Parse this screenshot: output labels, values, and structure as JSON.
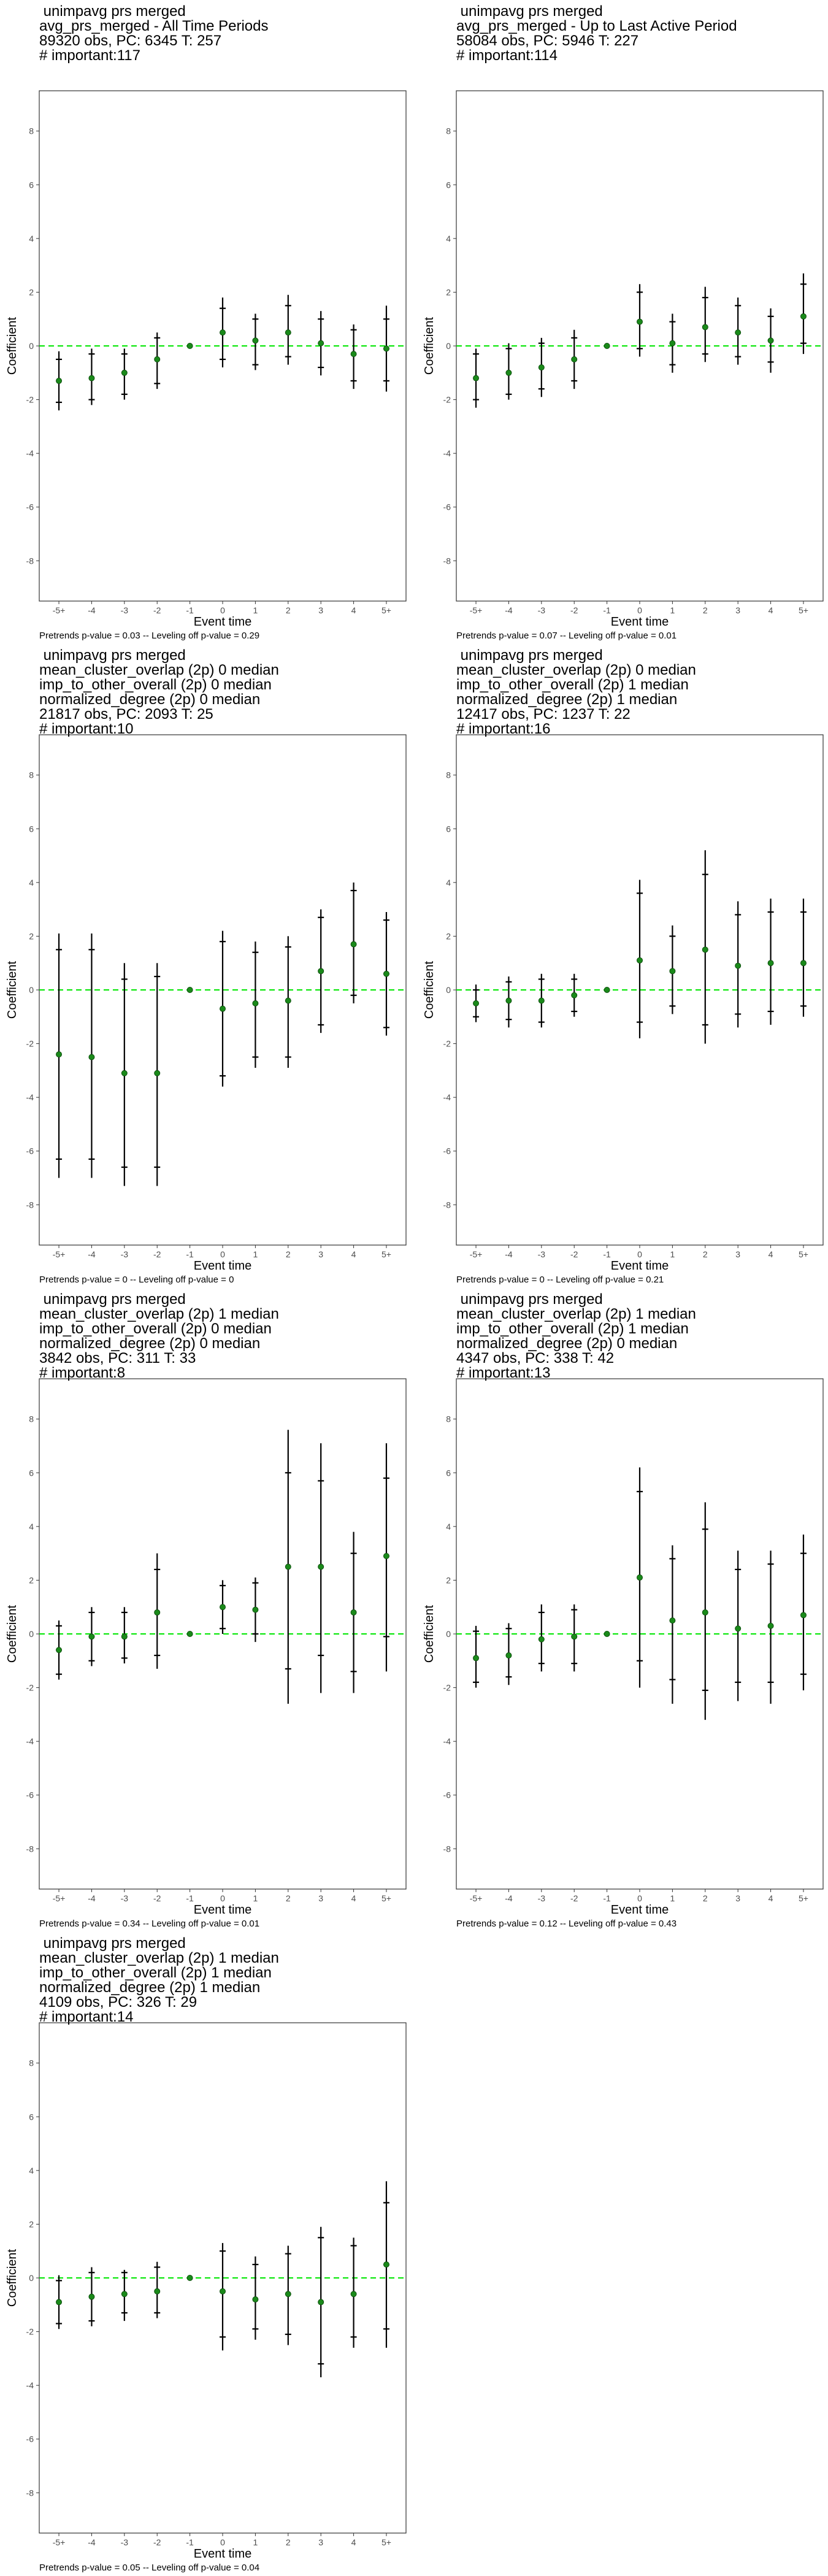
{
  "axis_labels": {
    "x": "Event time",
    "y": "Coefficient"
  },
  "colors": {
    "point": "#1a8a1a",
    "zero_line": "#00e600",
    "error_bar": "#000000",
    "frame": "#333333"
  },
  "chart_data": [
    {
      "type": "scatter",
      "title_lines": [
        " unimpavg prs merged",
        "avg_prs_merged - All Time Periods",
        "89320 obs, PC: 6345 T: 257",
        "# important:117"
      ],
      "footer": "Pretrends p-value = 0.03 -- Leveling off p-value = 0.29",
      "xlabel": "Event time",
      "ylabel": "Coefficient",
      "categories": [
        "-5+",
        "-4",
        "-3",
        "-2",
        "-1",
        "0",
        "1",
        "2",
        "3",
        "4",
        "5+"
      ],
      "ylim": [
        -9.5,
        9.5
      ],
      "yticks": [
        -8,
        -6,
        -4,
        -2,
        0,
        2,
        4,
        6,
        8
      ],
      "series": [
        {
          "estimate": [
            -1.3,
            -1.2,
            -1.0,
            -0.5,
            0,
            0.5,
            0.2,
            0.5,
            0.1,
            -0.3,
            -0.1
          ],
          "ci95": [
            [
              -2.4,
              -0.2
            ],
            [
              -2.2,
              -0.1
            ],
            [
              -2.0,
              -0.1
            ],
            [
              -1.6,
              0.5
            ],
            [
              0,
              0
            ],
            [
              -0.8,
              1.8
            ],
            [
              -0.9,
              1.2
            ],
            [
              -0.7,
              1.9
            ],
            [
              -1.1,
              1.3
            ],
            [
              -1.6,
              0.8
            ],
            [
              -1.7,
              1.5
            ]
          ],
          "ci90": [
            [
              -2.1,
              -0.5
            ],
            [
              -2.0,
              -0.3
            ],
            [
              -1.8,
              -0.3
            ],
            [
              -1.4,
              0.3
            ],
            [
              0,
              0
            ],
            [
              -0.5,
              1.4
            ],
            [
              -0.7,
              1.0
            ],
            [
              -0.4,
              1.5
            ],
            [
              -0.8,
              1.0
            ],
            [
              -1.3,
              0.6
            ],
            [
              -1.3,
              1.0
            ]
          ]
        }
      ]
    },
    {
      "type": "scatter",
      "title_lines": [
        " unimpavg prs merged",
        "avg_prs_merged - Up to Last Active Period",
        "58084 obs, PC: 5946 T: 227",
        "# important:114"
      ],
      "footer": "Pretrends p-value = 0.07 -- Leveling off p-value = 0.01",
      "xlabel": "Event time",
      "ylabel": "Coefficient",
      "categories": [
        "-5+",
        "-4",
        "-3",
        "-2",
        "-1",
        "0",
        "1",
        "2",
        "3",
        "4",
        "5+"
      ],
      "ylim": [
        -9.5,
        9.5
      ],
      "yticks": [
        -8,
        -6,
        -4,
        -2,
        0,
        2,
        4,
        6,
        8
      ],
      "series": [
        {
          "estimate": [
            -1.2,
            -1.0,
            -0.8,
            -0.5,
            0,
            0.9,
            0.1,
            0.7,
            0.5,
            0.2,
            1.1
          ],
          "ci95": [
            [
              -2.3,
              -0.1
            ],
            [
              -2.0,
              0.1
            ],
            [
              -1.9,
              0.3
            ],
            [
              -1.6,
              0.6
            ],
            [
              0,
              0
            ],
            [
              -0.4,
              2.3
            ],
            [
              -1.0,
              1.2
            ],
            [
              -0.6,
              2.2
            ],
            [
              -0.7,
              1.8
            ],
            [
              -1.0,
              1.4
            ],
            [
              -0.3,
              2.7
            ]
          ],
          "ci90": [
            [
              -2.0,
              -0.3
            ],
            [
              -1.8,
              -0.1
            ],
            [
              -1.6,
              0.1
            ],
            [
              -1.3,
              0.3
            ],
            [
              0,
              0
            ],
            [
              -0.1,
              2.0
            ],
            [
              -0.7,
              0.9
            ],
            [
              -0.3,
              1.8
            ],
            [
              -0.4,
              1.5
            ],
            [
              -0.6,
              1.1
            ],
            [
              0.1,
              2.3
            ]
          ]
        }
      ]
    },
    {
      "type": "scatter",
      "title_lines": [
        " unimpavg prs merged",
        "mean_cluster_overlap (2p) 0 median",
        "imp_to_other_overall (2p) 0 median",
        "normalized_degree (2p) 0 median",
        "21817 obs, PC: 2093 T: 25",
        "# important:10"
      ],
      "footer": "Pretrends p-value = 0 -- Leveling off p-value = 0",
      "xlabel": "Event time",
      "ylabel": "Coefficient",
      "categories": [
        "-5+",
        "-4",
        "-3",
        "-2",
        "-1",
        "0",
        "1",
        "2",
        "3",
        "4",
        "5+"
      ],
      "ylim": [
        -9.5,
        9.5
      ],
      "yticks": [
        -8,
        -6,
        -4,
        -2,
        0,
        2,
        4,
        6,
        8
      ],
      "series": [
        {
          "estimate": [
            -2.4,
            -2.5,
            -3.1,
            -3.1,
            0,
            -0.7,
            -0.5,
            -0.4,
            0.7,
            1.7,
            0.6
          ],
          "ci95": [
            [
              -7.0,
              2.1
            ],
            [
              -7.0,
              2.1
            ],
            [
              -7.3,
              1.0
            ],
            [
              -7.3,
              1.0
            ],
            [
              0,
              0
            ],
            [
              -3.6,
              2.2
            ],
            [
              -2.9,
              1.8
            ],
            [
              -2.9,
              2.0
            ],
            [
              -1.6,
              3.0
            ],
            [
              -0.5,
              4.0
            ],
            [
              -1.7,
              2.9
            ]
          ],
          "ci90": [
            [
              -6.3,
              1.5
            ],
            [
              -6.3,
              1.5
            ],
            [
              -6.6,
              0.4
            ],
            [
              -6.6,
              0.5
            ],
            [
              0,
              0
            ],
            [
              -3.2,
              1.8
            ],
            [
              -2.5,
              1.4
            ],
            [
              -2.5,
              1.6
            ],
            [
              -1.3,
              2.7
            ],
            [
              -0.2,
              3.7
            ],
            [
              -1.4,
              2.6
            ]
          ]
        }
      ]
    },
    {
      "type": "scatter",
      "title_lines": [
        " unimpavg prs merged",
        "mean_cluster_overlap (2p) 0 median",
        "imp_to_other_overall (2p) 1 median",
        "normalized_degree (2p) 1 median",
        "12417 obs, PC: 1237 T: 22",
        "# important:16"
      ],
      "footer": "Pretrends p-value = 0 -- Leveling off p-value = 0.21",
      "xlabel": "Event time",
      "ylabel": "Coefficient",
      "categories": [
        "-5+",
        "-4",
        "-3",
        "-2",
        "-1",
        "0",
        "1",
        "2",
        "3",
        "4",
        "5+"
      ],
      "ylim": [
        -9.5,
        9.5
      ],
      "yticks": [
        -8,
        -6,
        -4,
        -2,
        0,
        2,
        4,
        6,
        8
      ],
      "series": [
        {
          "estimate": [
            -0.5,
            -0.4,
            -0.4,
            -0.2,
            0,
            1.1,
            0.7,
            1.5,
            0.9,
            1.0,
            1.0
          ],
          "ci95": [
            [
              -1.2,
              0.2
            ],
            [
              -1.4,
              0.5
            ],
            [
              -1.4,
              0.6
            ],
            [
              -1.0,
              0.6
            ],
            [
              0,
              0
            ],
            [
              -1.8,
              4.1
            ],
            [
              -0.9,
              2.4
            ],
            [
              -2.0,
              5.2
            ],
            [
              -1.4,
              3.3
            ],
            [
              -1.3,
              3.4
            ],
            [
              -1.0,
              3.4
            ]
          ],
          "ci90": [
            [
              -1.0,
              0.0
            ],
            [
              -1.1,
              0.3
            ],
            [
              -1.2,
              0.4
            ],
            [
              -0.8,
              0.4
            ],
            [
              0,
              0
            ],
            [
              -1.2,
              3.6
            ],
            [
              -0.6,
              2.0
            ],
            [
              -1.3,
              4.3
            ],
            [
              -0.9,
              2.8
            ],
            [
              -0.8,
              2.9
            ],
            [
              -0.6,
              2.9
            ]
          ]
        }
      ]
    },
    {
      "type": "scatter",
      "title_lines": [
        " unimpavg prs merged",
        "mean_cluster_overlap (2p) 1 median",
        "imp_to_other_overall (2p) 0 median",
        "normalized_degree (2p) 0 median",
        "3842 obs, PC: 311 T: 33",
        "# important:8"
      ],
      "footer": "Pretrends p-value = 0.34 -- Leveling off p-value = 0.01",
      "xlabel": "Event time",
      "ylabel": "Coefficient",
      "categories": [
        "-5+",
        "-4",
        "-3",
        "-2",
        "-1",
        "0",
        "1",
        "2",
        "3",
        "4",
        "5+"
      ],
      "ylim": [
        -9.5,
        9.5
      ],
      "yticks": [
        -8,
        -6,
        -4,
        -2,
        0,
        2,
        4,
        6,
        8
      ],
      "series": [
        {
          "estimate": [
            -0.6,
            -0.1,
            -0.1,
            0.8,
            0,
            1.0,
            0.9,
            2.5,
            2.5,
            0.8,
            2.9
          ],
          "ci95": [
            [
              -1.7,
              0.5
            ],
            [
              -1.2,
              1.0
            ],
            [
              -1.1,
              1.0
            ],
            [
              -1.3,
              3.0
            ],
            [
              0,
              0
            ],
            [
              0.0,
              2.0
            ],
            [
              -0.3,
              2.1
            ],
            [
              -2.6,
              7.6
            ],
            [
              -2.2,
              7.1
            ],
            [
              -2.2,
              3.8
            ],
            [
              -1.4,
              7.1
            ]
          ],
          "ci90": [
            [
              -1.5,
              0.3
            ],
            [
              -1.0,
              0.8
            ],
            [
              -0.9,
              0.8
            ],
            [
              -0.8,
              2.4
            ],
            [
              0,
              0
            ],
            [
              0.2,
              1.8
            ],
            [
              0.0,
              1.9
            ],
            [
              -1.3,
              6.0
            ],
            [
              -0.8,
              5.7
            ],
            [
              -1.4,
              3.0
            ],
            [
              -0.1,
              5.8
            ]
          ]
        }
      ]
    },
    {
      "type": "scatter",
      "title_lines": [
        " unimpavg prs merged",
        "mean_cluster_overlap (2p) 1 median",
        "imp_to_other_overall (2p) 1 median",
        "normalized_degree (2p) 0 median",
        "4347 obs, PC: 338 T: 42",
        "# important:13"
      ],
      "footer": "Pretrends p-value = 0.12 -- Leveling off p-value = 0.43",
      "xlabel": "Event time",
      "ylabel": "Coefficient",
      "categories": [
        "-5+",
        "-4",
        "-3",
        "-2",
        "-1",
        "0",
        "1",
        "2",
        "3",
        "4",
        "5+"
      ],
      "ylim": [
        -9.5,
        9.5
      ],
      "yticks": [
        -8,
        -6,
        -4,
        -2,
        0,
        2,
        4,
        6,
        8
      ],
      "series": [
        {
          "estimate": [
            -0.9,
            -0.8,
            -0.2,
            -0.1,
            0,
            2.1,
            0.5,
            0.8,
            0.2,
            0.3,
            0.7
          ],
          "ci95": [
            [
              -2.0,
              0.3
            ],
            [
              -1.9,
              0.4
            ],
            [
              -1.4,
              1.1
            ],
            [
              -1.4,
              1.1
            ],
            [
              0,
              0
            ],
            [
              -2.0,
              6.2
            ],
            [
              -2.6,
              3.3
            ],
            [
              -3.2,
              4.9
            ],
            [
              -2.5,
              3.1
            ],
            [
              -2.6,
              3.1
            ],
            [
              -2.1,
              3.7
            ]
          ],
          "ci90": [
            [
              -1.8,
              0.1
            ],
            [
              -1.6,
              0.2
            ],
            [
              -1.1,
              0.8
            ],
            [
              -1.1,
              0.9
            ],
            [
              0,
              0
            ],
            [
              -1.0,
              5.3
            ],
            [
              -1.7,
              2.8
            ],
            [
              -2.1,
              3.9
            ],
            [
              -1.8,
              2.4
            ],
            [
              -1.8,
              2.6
            ],
            [
              -1.5,
              3.0
            ]
          ]
        }
      ]
    },
    {
      "type": "scatter",
      "title_lines": [
        " unimpavg prs merged",
        "mean_cluster_overlap (2p) 1 median",
        "imp_to_other_overall (2p) 1 median",
        "normalized_degree (2p) 1 median",
        "4109 obs, PC: 326 T: 29",
        "# important:14"
      ],
      "footer": "Pretrends p-value = 0.05 -- Leveling off p-value = 0.04",
      "xlabel": "Event time",
      "ylabel": "Coefficient",
      "categories": [
        "-5+",
        "-4",
        "-3",
        "-2",
        "-1",
        "0",
        "1",
        "2",
        "3",
        "4",
        "5+"
      ],
      "ylim": [
        -9.5,
        9.5
      ],
      "yticks": [
        -8,
        -6,
        -4,
        -2,
        0,
        2,
        4,
        6,
        8
      ],
      "series": [
        {
          "estimate": [
            -0.9,
            -0.7,
            -0.6,
            -0.5,
            0,
            -0.5,
            -0.8,
            -0.6,
            -0.9,
            -0.6,
            0.5
          ],
          "ci95": [
            [
              -1.9,
              0.1
            ],
            [
              -1.8,
              0.4
            ],
            [
              -1.6,
              0.3
            ],
            [
              -1.5,
              0.6
            ],
            [
              0,
              0
            ],
            [
              -2.7,
              1.3
            ],
            [
              -2.3,
              0.8
            ],
            [
              -2.5,
              1.2
            ],
            [
              -3.7,
              1.9
            ],
            [
              -2.6,
              1.5
            ],
            [
              -2.6,
              3.6
            ]
          ],
          "ci90": [
            [
              -1.7,
              -0.1
            ],
            [
              -1.6,
              0.2
            ],
            [
              -1.3,
              0.2
            ],
            [
              -1.3,
              0.4
            ],
            [
              0,
              0
            ],
            [
              -2.2,
              1.0
            ],
            [
              -1.9,
              0.5
            ],
            [
              -2.1,
              0.9
            ],
            [
              -3.2,
              1.5
            ],
            [
              -2.2,
              1.2
            ],
            [
              -1.9,
              2.8
            ]
          ]
        }
      ]
    }
  ]
}
